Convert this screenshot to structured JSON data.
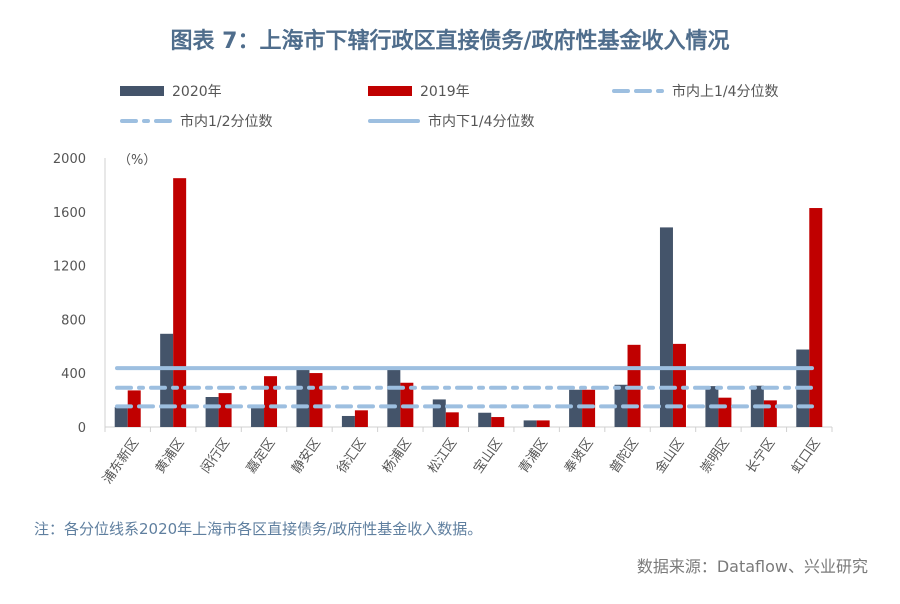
{
  "chart_data": {
    "type": "bar",
    "title": "图表 7：上海市下辖行政区直接债务/政府性基金收入情况",
    "ylabel": "（%）",
    "ylim": [
      0,
      2000
    ],
    "yticks": [
      "0",
      "400",
      "800",
      "1200",
      "1600",
      "2000"
    ],
    "grid": false,
    "legend_position": "top",
    "categories": [
      "浦东新区",
      "黄浦区",
      "闵行区",
      "嘉定区",
      "静安区",
      "徐汇区",
      "杨浦区",
      "松江区",
      "宝山区",
      "青浦区",
      "奉贤区",
      "普陀区",
      "金山区",
      "崇明区",
      "长宁区",
      "虹口区"
    ],
    "series": [
      {
        "name": "2020年",
        "color": "#44546a",
        "values": [
          148,
          693,
          223,
          153,
          425,
          82,
          425,
          205,
          106,
          49,
          277,
          314,
          1484,
          304,
          307,
          576
        ]
      },
      {
        "name": "2019年",
        "color": "#c00000",
        "values": [
          272,
          1850,
          252,
          378,
          401,
          124,
          329,
          109,
          74,
          49,
          277,
          611,
          618,
          218,
          198,
          1628
        ]
      }
    ],
    "reference_lines": [
      {
        "name": "市内上1/4分位数",
        "style": "dashed",
        "color": "#9dbfe0",
        "value": 153
      },
      {
        "name": "市内1/2分位数",
        "style": "dash-dot",
        "color": "#9dbfe0",
        "value": 292
      },
      {
        "name": "市内下1/4分位数",
        "style": "solid",
        "color": "#9dbfe0",
        "value": 438
      }
    ],
    "note": "注：各分位线系2020年上海市各区直接债务/政府性基金收入数据。",
    "source": "数据来源：Dataflow、兴业研究"
  }
}
